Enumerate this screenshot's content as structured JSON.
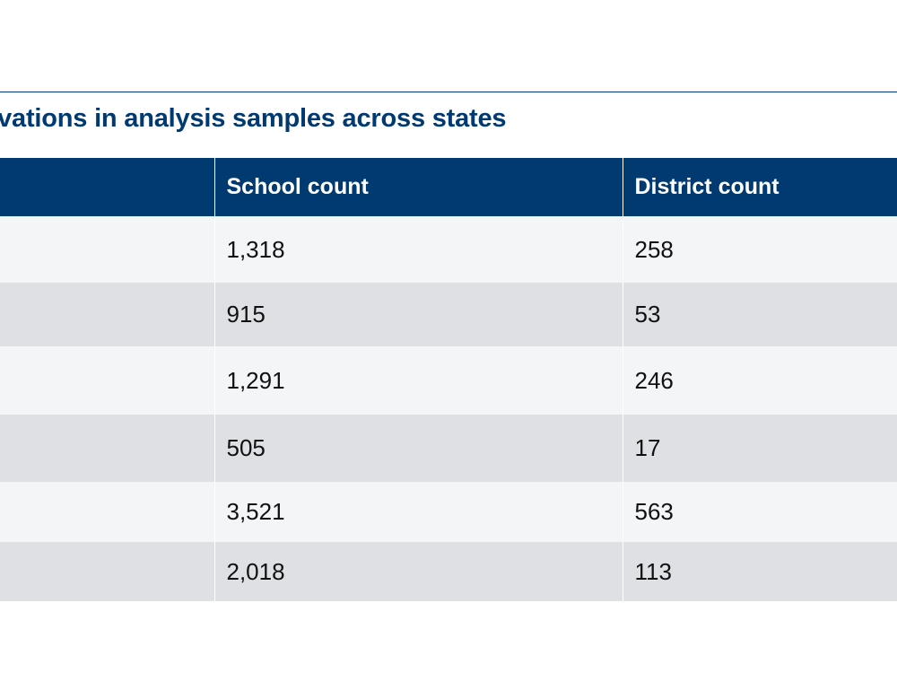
{
  "title": "rvations in analysis samples across states",
  "table": {
    "headers": [
      "",
      "School count",
      "District count"
    ],
    "rows": [
      [
        "",
        "1,318",
        "258"
      ],
      [
        "",
        "915",
        "53"
      ],
      [
        "",
        "1,291",
        "246"
      ],
      [
        "",
        "505",
        "17"
      ],
      [
        "",
        "3,521",
        "563"
      ],
      [
        "",
        "2,018",
        "113"
      ]
    ]
  },
  "colors": {
    "header_bg": "#003a70",
    "title": "#003a70",
    "row_light": "#f4f5f7",
    "row_dark": "#dfe0e4"
  }
}
